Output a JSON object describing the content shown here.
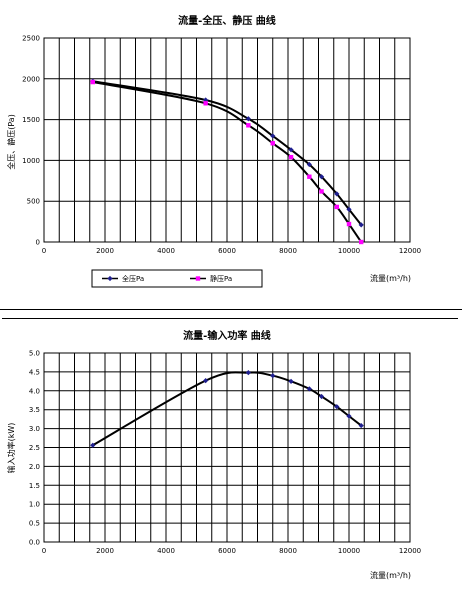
{
  "chart_data": [
    {
      "type": "line",
      "title": "流量-全压、静压 曲线",
      "xlabel": "流量(m³/h)",
      "ylabel": "全压、静压(Pa)",
      "xlim": [
        0,
        12000
      ],
      "ylim": [
        0,
        2500
      ],
      "xticks": [
        "0",
        "2000",
        "4000",
        "6000",
        "8000",
        "10000",
        "12000"
      ],
      "yticks": [
        "0",
        "500",
        "1000",
        "1500",
        "2000",
        "2500"
      ],
      "grid": true,
      "legend": "bottom",
      "series": [
        {
          "name": "全压Pa",
          "color": "#1f1f8f",
          "marker": "diamond",
          "x": [
            1600,
            5300,
            6700,
            7500,
            8100,
            8700,
            9100,
            9600,
            10000,
            10400
          ],
          "y": [
            1970,
            1740,
            1510,
            1300,
            1130,
            950,
            800,
            590,
            400,
            210
          ]
        },
        {
          "name": "静压Pa",
          "color": "#ff00ff",
          "marker": "square",
          "x": [
            1600,
            5300,
            6700,
            7500,
            8100,
            8700,
            9100,
            9600,
            10000,
            10400
          ],
          "y": [
            1960,
            1700,
            1430,
            1210,
            1040,
            800,
            620,
            430,
            220,
            0
          ]
        }
      ]
    },
    {
      "type": "line",
      "title": "流量-输入功率 曲线",
      "xlabel": "流量(m³/h)",
      "ylabel": "输入功率(kW)",
      "xlim": [
        0,
        12000
      ],
      "ylim": [
        0,
        5
      ],
      "xticks": [
        "0",
        "2000",
        "4000",
        "6000",
        "8000",
        "10000",
        "12000"
      ],
      "yticks": [
        "0.0",
        "0.5",
        "1.0",
        "1.5",
        "2.0",
        "2.5",
        "3.0",
        "3.5",
        "4.0",
        "4.5",
        "5.0"
      ],
      "grid": true,
      "series": [
        {
          "color": "#1f1f8f",
          "marker": "diamond",
          "x": [
            1600,
            5300,
            6700,
            7500,
            8100,
            8700,
            9100,
            9600,
            10000,
            10400
          ],
          "y": [
            2.56,
            4.27,
            4.48,
            4.4,
            4.25,
            4.05,
            3.85,
            3.58,
            3.33,
            3.08
          ]
        }
      ]
    }
  ]
}
